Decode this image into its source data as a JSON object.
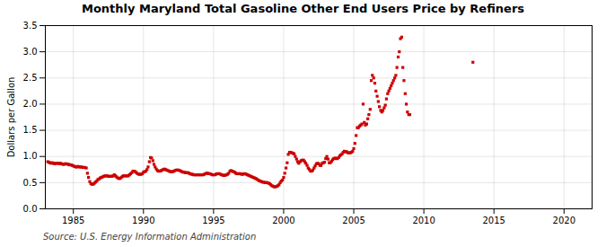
{
  "chart_data": {
    "type": "scatter",
    "title": "Monthly Maryland Total Gasoline Other End Users Price by Refiners",
    "ylabel": "Dollars per Gallon",
    "source": "Source: U.S. Energy Information Administration",
    "color": "#cc0000",
    "marker": "square",
    "grid": true,
    "xlim": [
      1983,
      2022
    ],
    "ylim": [
      0.0,
      3.5
    ],
    "xticks": [
      1985,
      1990,
      1995,
      2000,
      2005,
      2010,
      2015,
      2020
    ],
    "yticks": [
      {
        "value": 0.0,
        "label": "0.0"
      },
      0.5,
      {
        "value": 1.0,
        "label": "1.0"
      },
      1.5,
      {
        "value": 2.0,
        "label": "2.0"
      },
      2.5,
      {
        "value": 3.0,
        "label": "3.0"
      },
      3.5
    ],
    "x": [
      1983.17,
      1983.25,
      1983.33,
      1983.42,
      1983.5,
      1983.58,
      1983.67,
      1983.75,
      1983.83,
      1983.92,
      1984.0,
      1984.08,
      1984.17,
      1984.25,
      1984.33,
      1984.42,
      1984.5,
      1984.58,
      1984.67,
      1984.75,
      1984.83,
      1984.92,
      1985.0,
      1985.08,
      1985.17,
      1985.25,
      1985.33,
      1985.42,
      1985.5,
      1985.58,
      1985.67,
      1985.75,
      1985.83,
      1985.92,
      1986.0,
      1986.08,
      1986.17,
      1986.25,
      1986.33,
      1986.42,
      1986.5,
      1986.58,
      1986.67,
      1986.75,
      1986.83,
      1986.92,
      1987.0,
      1987.08,
      1987.17,
      1987.25,
      1987.33,
      1987.42,
      1987.5,
      1987.58,
      1987.67,
      1987.75,
      1987.83,
      1987.92,
      1988.0,
      1988.08,
      1988.17,
      1988.25,
      1988.33,
      1988.42,
      1988.5,
      1988.58,
      1988.67,
      1988.75,
      1988.83,
      1988.92,
      1989.0,
      1989.08,
      1989.17,
      1989.25,
      1989.33,
      1989.42,
      1989.5,
      1989.58,
      1989.67,
      1989.75,
      1989.83,
      1989.92,
      1990.0,
      1990.08,
      1990.17,
      1990.25,
      1990.33,
      1990.42,
      1990.5,
      1990.58,
      1990.67,
      1990.75,
      1990.83,
      1990.92,
      1991.0,
      1991.08,
      1991.17,
      1991.25,
      1991.33,
      1991.42,
      1991.5,
      1991.58,
      1991.67,
      1991.75,
      1991.83,
      1991.92,
      1992.0,
      1992.08,
      1992.17,
      1992.25,
      1992.33,
      1992.42,
      1992.5,
      1992.58,
      1992.67,
      1992.75,
      1992.83,
      1992.92,
      1993.0,
      1993.08,
      1993.17,
      1993.25,
      1993.33,
      1993.42,
      1993.5,
      1993.58,
      1993.67,
      1993.75,
      1993.83,
      1993.92,
      1994.0,
      1994.08,
      1994.17,
      1994.25,
      1994.33,
      1994.42,
      1994.5,
      1994.58,
      1994.67,
      1994.75,
      1994.83,
      1994.92,
      1995.0,
      1995.08,
      1995.17,
      1995.25,
      1995.33,
      1995.42,
      1995.5,
      1995.58,
      1995.67,
      1995.75,
      1995.83,
      1995.92,
      1996.0,
      1996.08,
      1996.17,
      1996.25,
      1996.33,
      1996.42,
      1996.5,
      1996.58,
      1996.67,
      1996.75,
      1996.83,
      1996.92,
      1997.0,
      1997.08,
      1997.17,
      1997.25,
      1997.33,
      1997.42,
      1997.5,
      1997.58,
      1997.67,
      1997.75,
      1997.83,
      1997.92,
      1998.0,
      1998.08,
      1998.17,
      1998.25,
      1998.33,
      1998.42,
      1998.5,
      1998.58,
      1998.67,
      1998.75,
      1998.83,
      1998.92,
      1999.0,
      1999.08,
      1999.17,
      1999.25,
      1999.33,
      1999.42,
      1999.5,
      1999.58,
      1999.67,
      1999.75,
      1999.83,
      1999.92,
      2000.0,
      2000.08,
      2000.17,
      2000.25,
      2000.33,
      2000.42,
      2000.5,
      2000.58,
      2000.67,
      2000.75,
      2000.83,
      2000.92,
      2001.0,
      2001.08,
      2001.17,
      2001.25,
      2001.33,
      2001.42,
      2001.5,
      2001.58,
      2001.67,
      2001.75,
      2001.83,
      2001.92,
      2002.0,
      2002.08,
      2002.17,
      2002.25,
      2002.33,
      2002.42,
      2002.5,
      2002.58,
      2002.67,
      2002.75,
      2002.83,
      2002.92,
      2003.0,
      2003.08,
      2003.17,
      2003.25,
      2003.33,
      2003.42,
      2003.5,
      2003.58,
      2003.67,
      2003.75,
      2003.83,
      2003.92,
      2004.0,
      2004.08,
      2004.17,
      2004.25,
      2004.33,
      2004.42,
      2004.5,
      2004.58,
      2004.67,
      2004.75,
      2004.83,
      2004.92,
      2005.0,
      2005.08,
      2005.17,
      2005.25,
      2005.33,
      2005.42,
      2005.5,
      2005.58,
      2005.67,
      2005.75,
      2005.83,
      2005.92,
      2006.0,
      2006.08,
      2006.17,
      2006.25,
      2006.33,
      2006.42,
      2006.5,
      2006.58,
      2006.67,
      2006.75,
      2006.83,
      2006.92,
      2007.0,
      2007.08,
      2007.17,
      2007.25,
      2007.33,
      2007.42,
      2007.5,
      2007.58,
      2007.67,
      2007.75,
      2007.83,
      2007.92,
      2008.0,
      2008.08,
      2008.17,
      2008.25,
      2008.33,
      2008.42,
      2008.5,
      2008.58,
      2008.67,
      2008.75,
      2008.83,
      2008.92,
      2009.0,
      2013.5
    ],
    "values": [
      0.9,
      0.89,
      0.88,
      0.87,
      0.88,
      0.87,
      0.86,
      0.87,
      0.87,
      0.87,
      0.86,
      0.87,
      0.86,
      0.85,
      0.85,
      0.86,
      0.86,
      0.85,
      0.85,
      0.84,
      0.84,
      0.83,
      0.82,
      0.81,
      0.8,
      0.8,
      0.81,
      0.8,
      0.8,
      0.8,
      0.79,
      0.79,
      0.79,
      0.78,
      0.68,
      0.6,
      0.52,
      0.48,
      0.47,
      0.47,
      0.49,
      0.51,
      0.53,
      0.56,
      0.57,
      0.59,
      0.6,
      0.61,
      0.62,
      0.63,
      0.63,
      0.63,
      0.62,
      0.62,
      0.62,
      0.62,
      0.63,
      0.65,
      0.63,
      0.61,
      0.59,
      0.58,
      0.58,
      0.6,
      0.62,
      0.63,
      0.63,
      0.63,
      0.63,
      0.63,
      0.65,
      0.67,
      0.69,
      0.72,
      0.72,
      0.71,
      0.69,
      0.67,
      0.66,
      0.66,
      0.66,
      0.67,
      0.7,
      0.71,
      0.72,
      0.75,
      0.8,
      0.9,
      0.98,
      0.97,
      0.92,
      0.85,
      0.8,
      0.76,
      0.73,
      0.72,
      0.72,
      0.73,
      0.74,
      0.75,
      0.76,
      0.75,
      0.74,
      0.73,
      0.72,
      0.71,
      0.71,
      0.71,
      0.72,
      0.73,
      0.74,
      0.74,
      0.74,
      0.73,
      0.72,
      0.71,
      0.7,
      0.7,
      0.69,
      0.69,
      0.69,
      0.68,
      0.67,
      0.66,
      0.66,
      0.65,
      0.65,
      0.65,
      0.65,
      0.65,
      0.65,
      0.65,
      0.65,
      0.65,
      0.66,
      0.67,
      0.68,
      0.68,
      0.67,
      0.67,
      0.66,
      0.65,
      0.65,
      0.65,
      0.66,
      0.67,
      0.67,
      0.67,
      0.66,
      0.65,
      0.64,
      0.64,
      0.64,
      0.65,
      0.66,
      0.68,
      0.72,
      0.73,
      0.72,
      0.71,
      0.7,
      0.68,
      0.67,
      0.67,
      0.67,
      0.67,
      0.66,
      0.66,
      0.67,
      0.67,
      0.66,
      0.65,
      0.64,
      0.63,
      0.62,
      0.61,
      0.6,
      0.59,
      0.58,
      0.57,
      0.55,
      0.54,
      0.53,
      0.52,
      0.51,
      0.51,
      0.5,
      0.5,
      0.5,
      0.49,
      0.48,
      0.46,
      0.44,
      0.43,
      0.42,
      0.42,
      0.43,
      0.44,
      0.46,
      0.5,
      0.53,
      0.55,
      0.6,
      0.68,
      0.78,
      0.88,
      1.04,
      1.08,
      1.08,
      1.07,
      1.06,
      1.05,
      1.0,
      0.95,
      0.9,
      0.87,
      0.9,
      0.92,
      0.93,
      0.93,
      0.9,
      0.87,
      0.83,
      0.78,
      0.75,
      0.72,
      0.72,
      0.74,
      0.78,
      0.82,
      0.86,
      0.87,
      0.86,
      0.83,
      0.83,
      0.87,
      0.88,
      0.89,
      0.96,
      1.0,
      0.95,
      0.88,
      0.88,
      0.91,
      0.94,
      0.96,
      0.97,
      0.96,
      0.96,
      0.98,
      1.01,
      1.03,
      1.05,
      1.08,
      1.1,
      1.09,
      1.09,
      1.07,
      1.07,
      1.07,
      1.08,
      1.1,
      1.15,
      1.25,
      1.4,
      1.55,
      1.55,
      1.58,
      1.6,
      1.62,
      2.0,
      1.65,
      1.6,
      1.62,
      1.72,
      1.8,
      1.9,
      2.45,
      2.55,
      2.5,
      2.4,
      2.25,
      2.15,
      2.05,
      1.95,
      1.88,
      1.85,
      1.88,
      1.93,
      1.98,
      2.1,
      2.2,
      2.25,
      2.3,
      2.35,
      2.4,
      2.45,
      2.5,
      2.55,
      2.7,
      2.9,
      3.0,
      3.25,
      3.28,
      2.7,
      2.45,
      2.2,
      2.0,
      1.85,
      1.8,
      1.8,
      2.8
    ]
  }
}
